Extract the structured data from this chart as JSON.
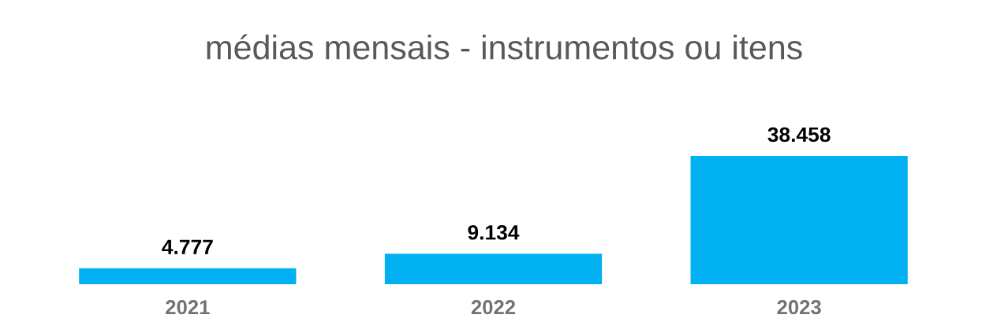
{
  "chart_data": {
    "type": "bar",
    "title": "médias mensais - instrumentos ou itens",
    "categories": [
      "2021",
      "2022",
      "2023"
    ],
    "values": [
      4777,
      9134,
      38458
    ],
    "value_labels": [
      "4.777",
      "9.134",
      "38.458"
    ],
    "color": "#00b0f0",
    "tick_labels": "x"
  }
}
